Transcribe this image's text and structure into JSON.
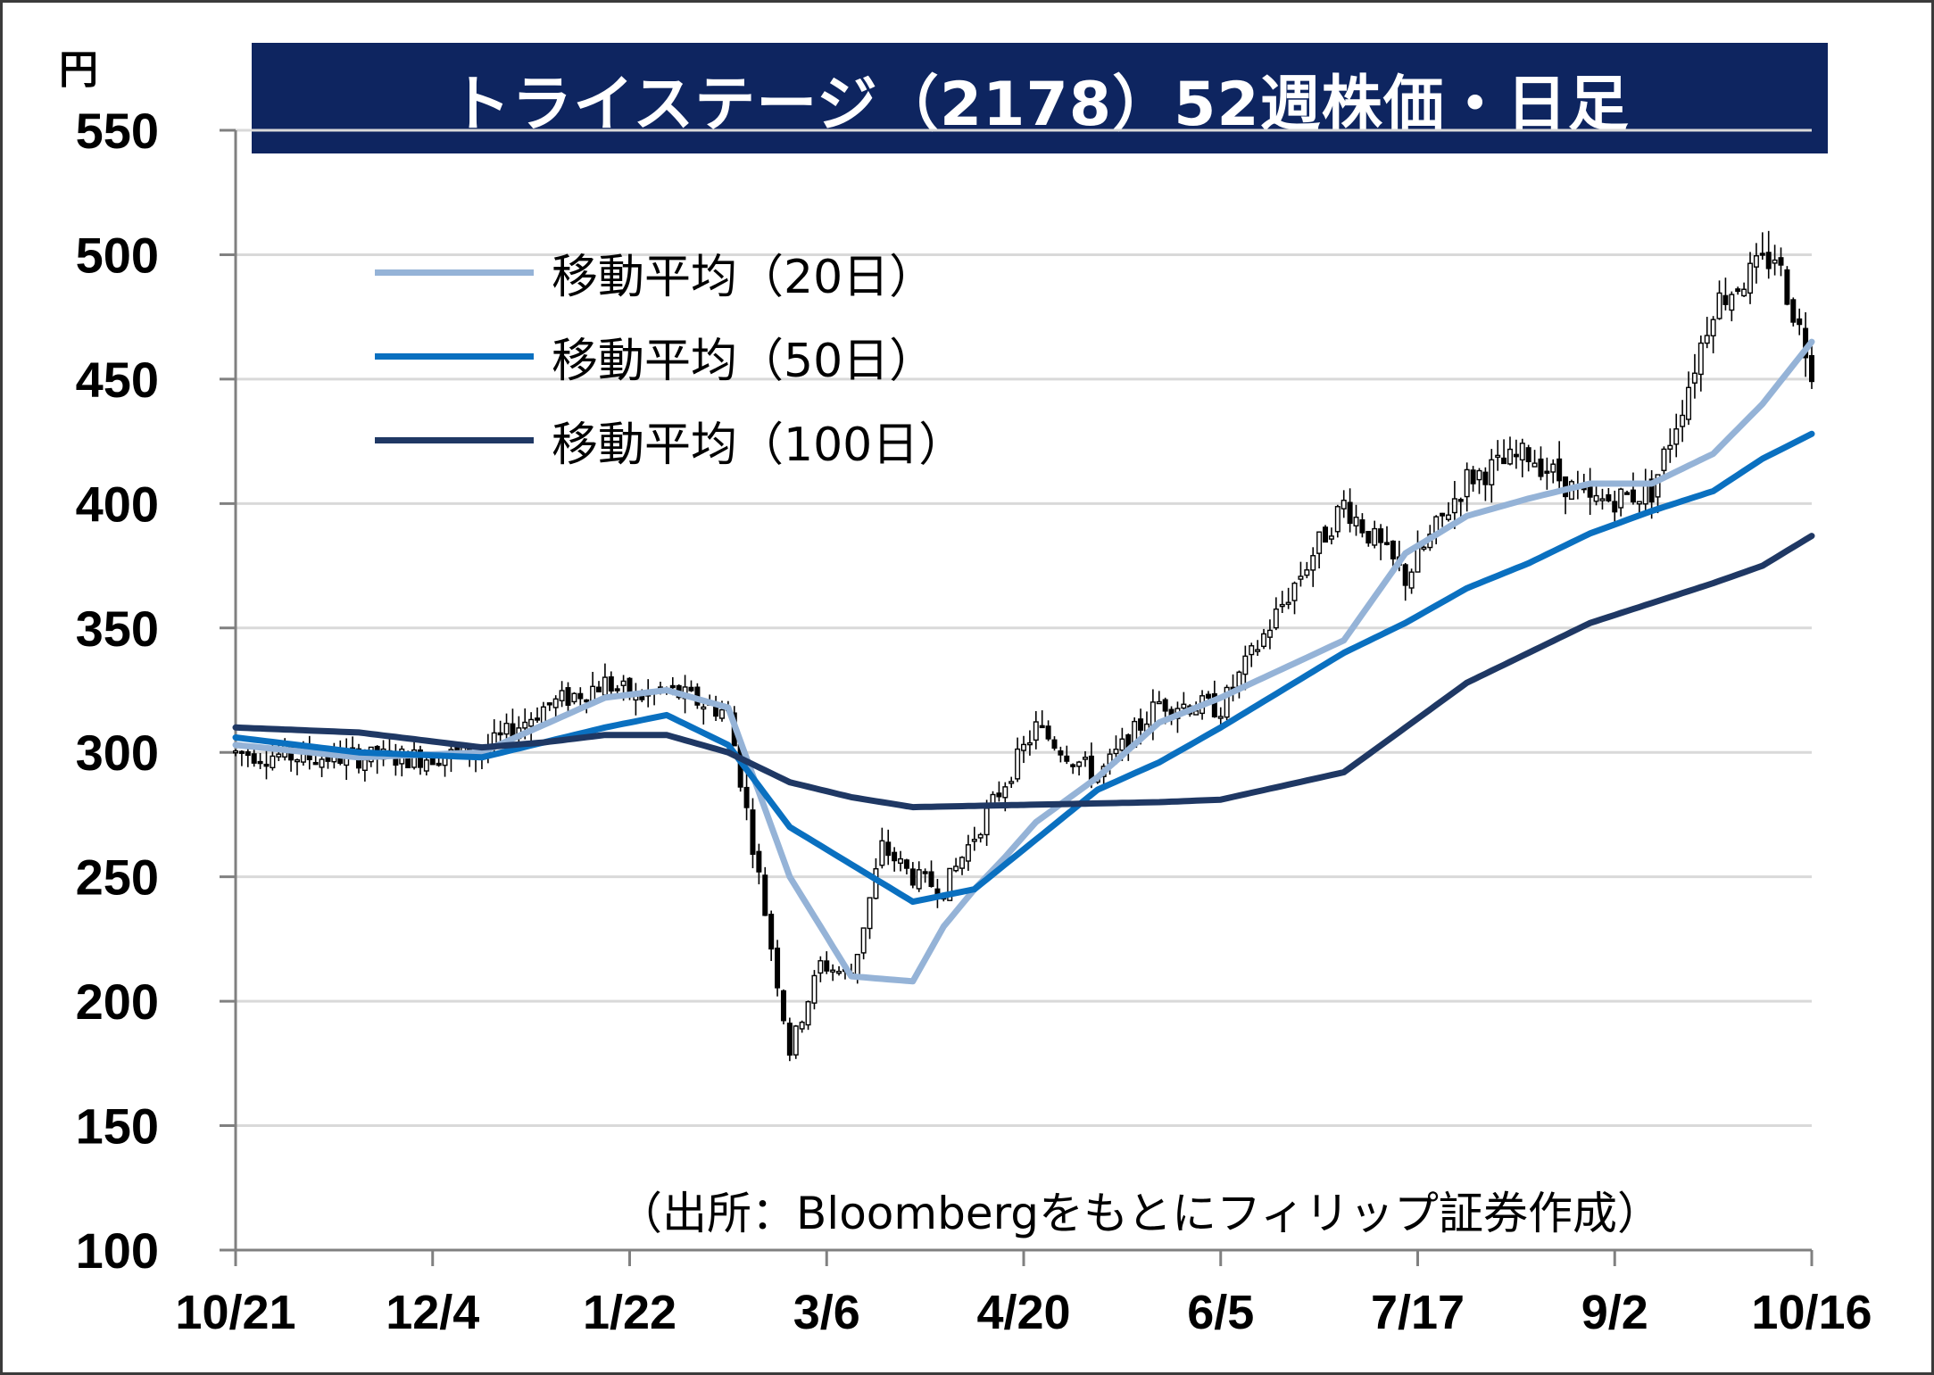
{
  "title": "トライステージ（2178）52週株価・日足",
  "unit": "円",
  "source": "（出所：Bloombergをもとにフィリップ証券作成）",
  "colors": {
    "title_bg": "#0e2560",
    "ma20": "#95b3d7",
    "ma50": "#0a70c0",
    "ma100": "#1f3864",
    "candle": "#000000",
    "grid": "#d9d9d9"
  },
  "chart_data": {
    "type": "candlestick",
    "ylim": [
      100,
      550
    ],
    "y_ticks": [
      "550",
      "500",
      "450",
      "400",
      "350",
      "300",
      "250",
      "200",
      "150",
      "100"
    ],
    "x_ticks": [
      "10/21",
      "12/4",
      "1/22",
      "3/6",
      "4/20",
      "6/5",
      "7/17",
      "9/2",
      "10/16"
    ],
    "legend": [
      "移動平均（20日）",
      "移動平均（50日）",
      "移動平均（100日）"
    ],
    "series": [
      {
        "name": "移動平均（20日）",
        "x": [
          0,
          20,
          40,
          60,
          70,
          80,
          90,
          100,
          110,
          115,
          120,
          125,
          130,
          140,
          150,
          160,
          180,
          190,
          200,
          210,
          220,
          230,
          240,
          248,
          256
        ],
        "values": [
          303,
          298,
          300,
          322,
          325,
          318,
          250,
          210,
          208,
          230,
          245,
          258,
          272,
          290,
          312,
          322,
          345,
          380,
          395,
          402,
          408,
          408,
          420,
          440,
          465
        ]
      },
      {
        "name": "移動平均（50日）",
        "x": [
          0,
          20,
          40,
          60,
          70,
          80,
          90,
          100,
          110,
          120,
          130,
          140,
          150,
          160,
          180,
          190,
          200,
          210,
          220,
          230,
          240,
          248,
          256
        ],
        "values": [
          306,
          300,
          298,
          310,
          315,
          303,
          270,
          255,
          240,
          245,
          265,
          285,
          296,
          310,
          340,
          352,
          366,
          376,
          388,
          397,
          405,
          418,
          428
        ]
      },
      {
        "name": "移動平均（100日）",
        "x": [
          0,
          20,
          40,
          50,
          60,
          70,
          80,
          90,
          100,
          110,
          130,
          150,
          160,
          180,
          190,
          200,
          210,
          220,
          230,
          240,
          248,
          256
        ],
        "values": [
          310,
          308,
          302,
          304,
          307,
          307,
          300,
          288,
          282,
          278,
          279,
          280,
          281,
          292,
          310,
          328,
          340,
          352,
          360,
          368,
          375,
          387
        ]
      }
    ],
    "price_path": {
      "x": [
        0,
        12,
        20,
        30,
        40,
        50,
        60,
        65,
        70,
        80,
        85,
        90,
        95,
        100,
        105,
        110,
        115,
        130,
        140,
        150,
        160,
        175,
        180,
        190,
        200,
        210,
        220,
        230,
        235,
        240,
        245,
        250,
        256
      ],
      "values": [
        300,
        298,
        298,
        298,
        300,
        318,
        328,
        322,
        325,
        316,
        250,
        180,
        215,
        210,
        262,
        250,
        245,
        310,
        290,
        320,
        318,
        380,
        400,
        370,
        410,
        420,
        400,
        405,
        440,
        480,
        490,
        500,
        455
      ]
    }
  }
}
